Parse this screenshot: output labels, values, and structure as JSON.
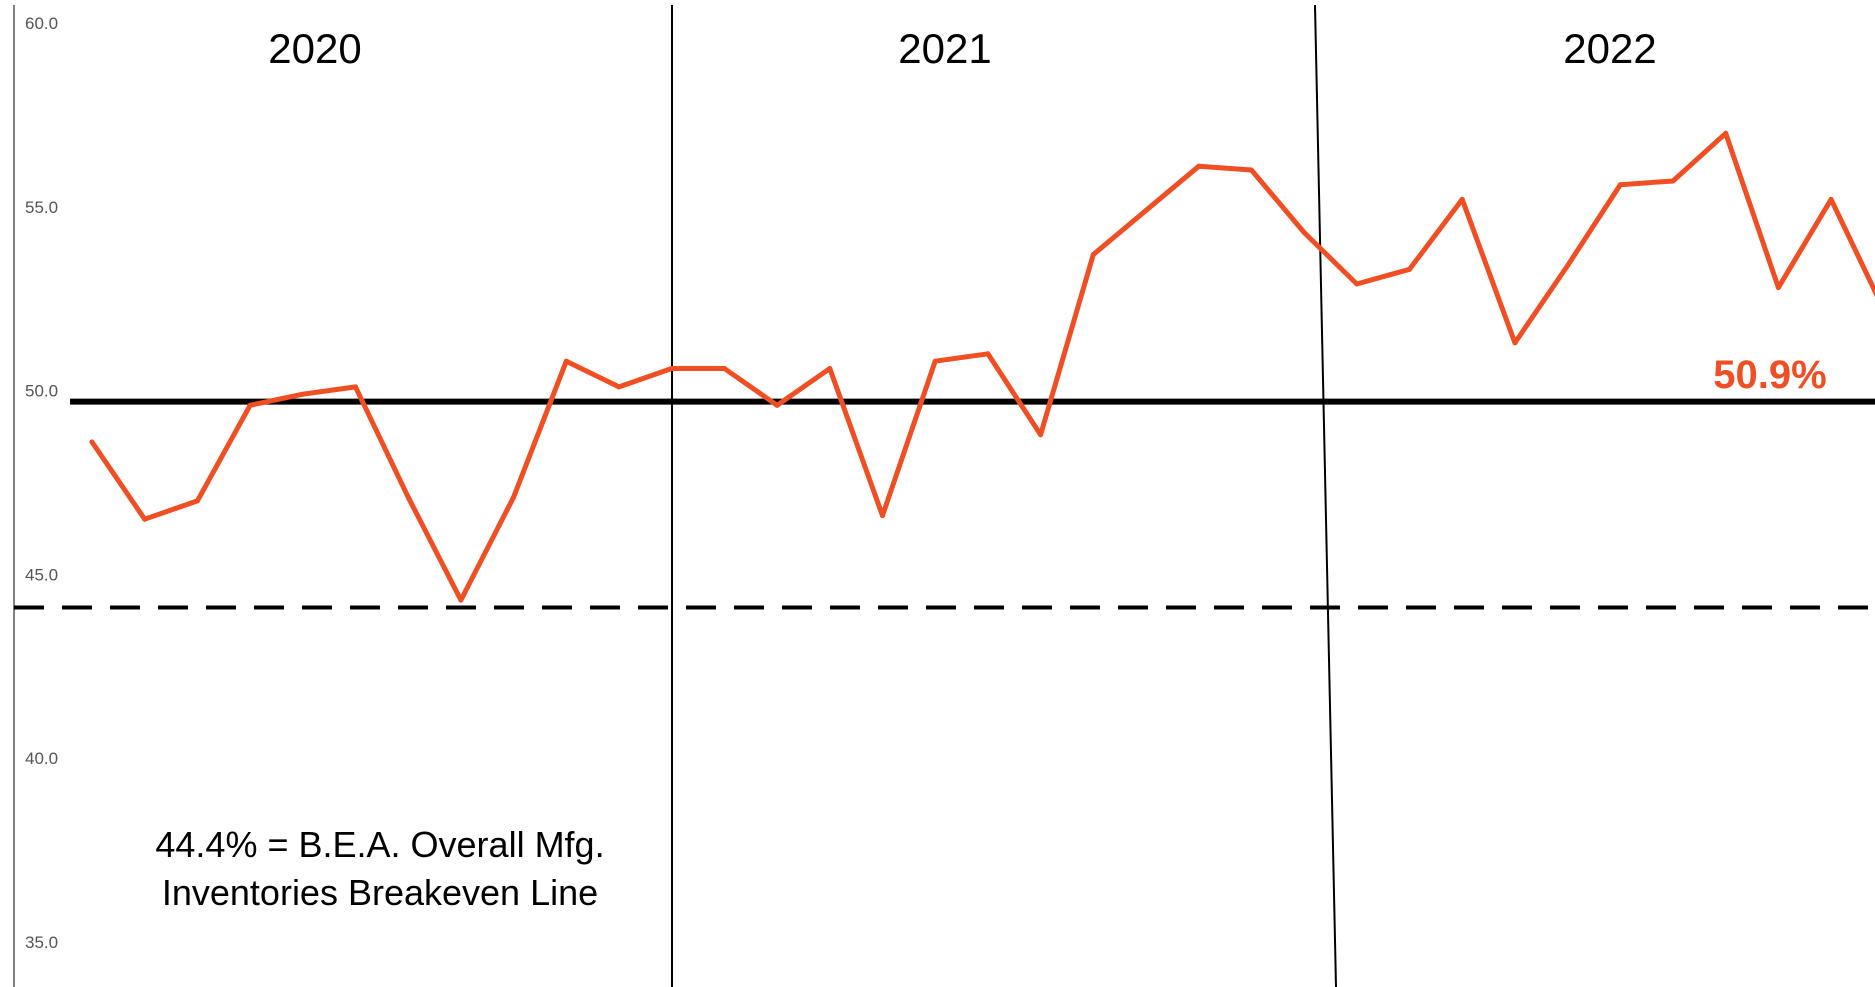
{
  "chart_data": {
    "type": "line",
    "title": "",
    "xlabel": "",
    "ylabel": "",
    "ylim": [
      35,
      60
    ],
    "y_ticks": [
      "35.0",
      "40.0",
      "45.0",
      "50.0",
      "55.0",
      "60.0"
    ],
    "grid": false,
    "year_labels": [
      "2020",
      "2021",
      "2022"
    ],
    "series": [
      {
        "color": "#f04e23",
        "values": [
          48.9,
          46.8,
          47.3,
          49.9,
          50.2,
          50.4,
          47.4,
          44.6,
          47.4,
          51.1,
          50.4,
          50.9,
          50.9,
          49.9,
          50.9,
          46.9,
          51.1,
          51.3,
          49.1,
          54.0,
          55.2,
          56.4,
          56.3,
          54.6,
          53.2,
          53.6,
          55.5,
          51.6,
          53.7,
          55.9,
          56.0,
          57.3,
          53.1,
          55.5,
          52.5,
          50.9
        ]
      }
    ],
    "breakeven_line": 50.0,
    "reference_line": 44.4,
    "annotation_lines": [
      "44.4% = B.E.A. Overall Mfg.",
      "Inventories Breakeven Line"
    ],
    "last_value_label": "50.9%",
    "colors": {
      "series": "#f04e23",
      "axis": "#000000",
      "tick": "#555555"
    }
  }
}
